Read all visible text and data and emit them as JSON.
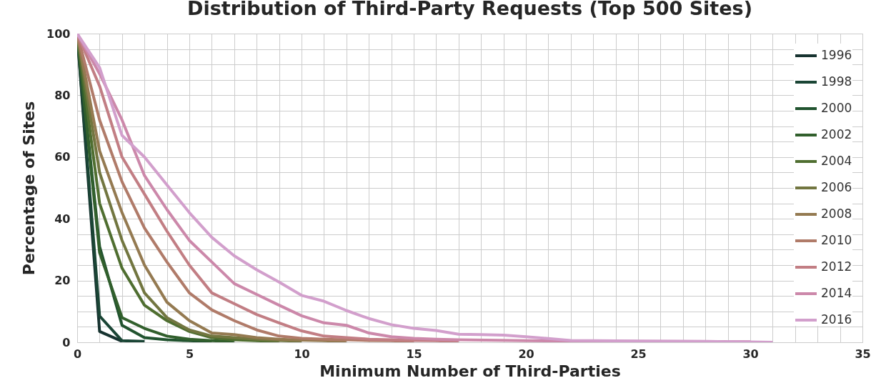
{
  "chart_data": {
    "type": "line",
    "title": "Distribution of Third-Party Requests (Top 500 Sites)",
    "xlabel": "Minimum Number of Third-Parties",
    "ylabel": "Percentage of Sites",
    "xlim": [
      0,
      35
    ],
    "ylim": [
      0,
      100
    ],
    "xticks": [
      0,
      {
        "value": 1,
        "label": null
      },
      {
        "value": 2,
        "label": null
      },
      {
        "value": 3,
        "label": null
      },
      {
        "value": 4,
        "label": null
      },
      5,
      {
        "value": 6,
        "label": null
      },
      {
        "value": 7,
        "label": null
      },
      {
        "value": 8,
        "label": null
      },
      {
        "value": 9,
        "label": null
      },
      10,
      {
        "value": 11,
        "label": null
      },
      {
        "value": 12,
        "label": null
      },
      {
        "value": 13,
        "label": null
      },
      {
        "value": 14,
        "label": null
      },
      15,
      {
        "value": 16,
        "label": null
      },
      {
        "value": 17,
        "label": null
      },
      {
        "value": 18,
        "label": null
      },
      {
        "value": 19,
        "label": null
      },
      20,
      {
        "value": 21,
        "label": null
      },
      {
        "value": 22,
        "label": null
      },
      {
        "value": 23,
        "label": null
      },
      {
        "value": 24,
        "label": null
      },
      25,
      {
        "value": 26,
        "label": null
      },
      {
        "value": 27,
        "label": null
      },
      {
        "value": 28,
        "label": null
      },
      {
        "value": 29,
        "label": null
      },
      30,
      {
        "value": 31,
        "label": null
      },
      {
        "value": 32,
        "label": null
      },
      {
        "value": 33,
        "label": null
      },
      {
        "value": 34,
        "label": null
      },
      35
    ],
    "yticks": [
      0,
      {
        "value": 5,
        "label": null
      },
      {
        "value": 10,
        "label": null
      },
      {
        "value": 15,
        "label": null
      },
      20,
      {
        "value": 25,
        "label": null
      },
      {
        "value": 30,
        "label": null
      },
      {
        "value": 35,
        "label": null
      },
      40,
      {
        "value": 45,
        "label": null
      },
      {
        "value": 50,
        "label": null
      },
      {
        "value": 55,
        "label": null
      },
      60,
      {
        "value": 65,
        "label": null
      },
      {
        "value": 70,
        "label": null
      },
      {
        "value": 75,
        "label": null
      },
      80,
      {
        "value": 85,
        "label": null
      },
      {
        "value": 90,
        "label": null
      },
      {
        "value": 95,
        "label": null
      },
      100
    ],
    "grid": true,
    "legend": "top right",
    "series": [
      {
        "name": "1996",
        "color": "#173330",
        "x": [
          0,
          1,
          2
        ],
        "values": [
          100,
          3.5,
          0.3
        ]
      },
      {
        "name": "1998",
        "color": "#1a4535",
        "x": [
          0,
          1,
          2,
          3
        ],
        "values": [
          100,
          8.5,
          0.5,
          0.3
        ]
      },
      {
        "name": "2000",
        "color": "#21532f",
        "x": [
          0,
          1,
          2,
          3,
          4,
          5,
          6
        ],
        "values": [
          100,
          31,
          5.5,
          1.5,
          0.8,
          0.5,
          0.3
        ]
      },
      {
        "name": "2002",
        "color": "#315f2c",
        "x": [
          0,
          1,
          2,
          3,
          4,
          5,
          6,
          7
        ],
        "values": [
          100,
          29,
          8,
          4.5,
          2,
          1,
          0.5,
          0.3
        ]
      },
      {
        "name": "2004",
        "color": "#4f6e30",
        "x": [
          0,
          1,
          2,
          3,
          4,
          5,
          6,
          7,
          8,
          9
        ],
        "values": [
          100,
          45,
          24,
          12,
          7,
          3.5,
          1.5,
          0.8,
          0.5,
          0.3
        ]
      },
      {
        "name": "2006",
        "color": "#727640",
        "x": [
          0,
          1,
          2,
          3,
          4,
          5,
          6,
          7,
          8,
          9,
          10
        ],
        "values": [
          100,
          55,
          33,
          16,
          8,
          4,
          2,
          1.5,
          1,
          0.6,
          0.3
        ]
      },
      {
        "name": "2008",
        "color": "#947a51",
        "x": [
          0,
          1,
          2,
          3,
          4,
          5,
          6,
          7,
          8,
          9,
          10,
          11,
          12
        ],
        "values": [
          100,
          62,
          42,
          25,
          13,
          7,
          3,
          2.5,
          1.5,
          1,
          0.7,
          0.5,
          0.3
        ]
      },
      {
        "name": "2010",
        "color": "#b07b69",
        "x": [
          0,
          1,
          2,
          3,
          4,
          5,
          6,
          7,
          8,
          9,
          10,
          11,
          12,
          13,
          14,
          15
        ],
        "values": [
          100,
          72,
          52,
          37,
          26,
          16,
          10.5,
          7,
          4,
          2,
          1.3,
          1,
          0.8,
          0.6,
          0.5,
          0.3
        ]
      },
      {
        "name": "2012",
        "color": "#c27e84",
        "x": [
          0,
          1,
          2,
          3,
          4,
          5,
          6,
          7,
          8,
          9,
          10,
          11,
          12,
          13,
          14,
          15,
          16,
          17
        ],
        "values": [
          100,
          83,
          60,
          48,
          36,
          25,
          16,
          12.5,
          9,
          6.3,
          3.7,
          2,
          1.5,
          1,
          0.8,
          0.6,
          0.5,
          0.3
        ]
      },
      {
        "name": "2014",
        "color": "#cc88aa",
        "x": [
          0,
          1,
          2,
          3,
          4,
          5,
          6,
          7,
          8,
          9,
          10,
          11,
          12,
          13,
          14,
          15,
          16,
          17,
          20,
          25,
          30
        ],
        "values": [
          100,
          87,
          72,
          54,
          43,
          33,
          26,
          19,
          15.5,
          12,
          8.6,
          6.3,
          5.5,
          3,
          1.8,
          1.3,
          1,
          0.8,
          0.5,
          0.3,
          0.2
        ]
      },
      {
        "name": "2016",
        "color": "#d29fcc",
        "x": [
          0,
          1,
          2,
          3,
          4,
          5,
          6,
          7,
          8,
          9,
          10,
          11,
          12,
          13,
          14,
          15,
          16,
          17,
          18,
          19,
          20,
          21,
          22,
          25,
          28,
          31
        ],
        "values": [
          100,
          89,
          67,
          60,
          51,
          42,
          34,
          28,
          23.5,
          19.5,
          15.2,
          13.3,
          10.3,
          7.7,
          5.7,
          4.5,
          3.8,
          2.6,
          2.5,
          2.3,
          1.8,
          1.2,
          0.6,
          0.4,
          0.3,
          0
        ]
      }
    ]
  }
}
